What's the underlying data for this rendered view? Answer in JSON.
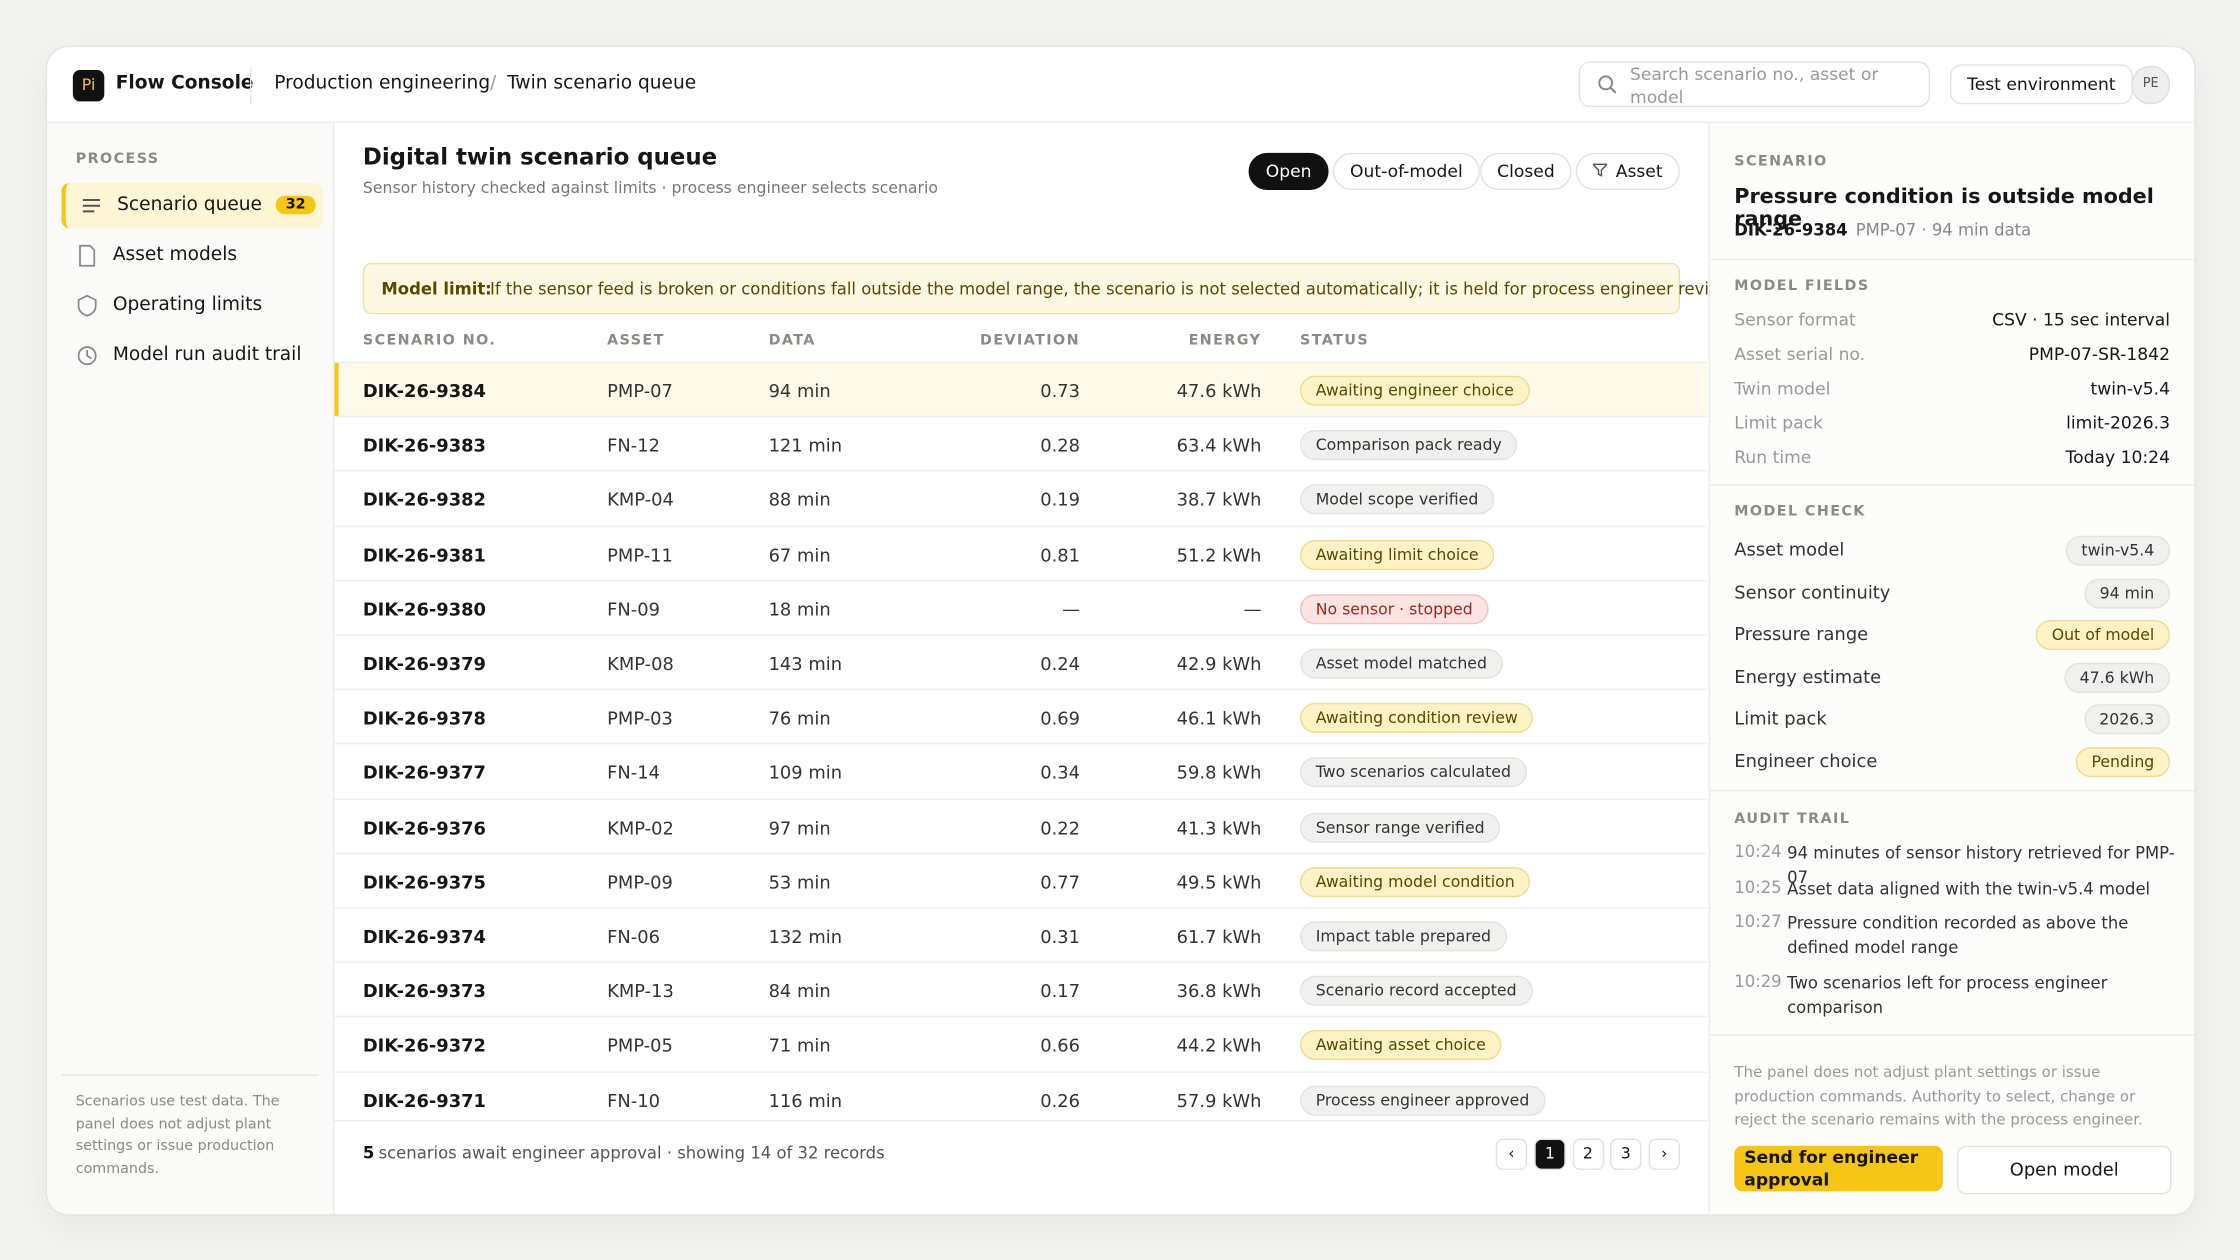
{
  "app": {
    "logo": "Pi",
    "name": "Flow Console"
  },
  "breadcrumb": {
    "items": [
      "Production engineering",
      "Twin scenario queue"
    ],
    "separator": "/"
  },
  "search": {
    "placeholder": "Search scenario no., asset or model"
  },
  "environment": "Test environment",
  "avatar": "PE",
  "sidebar": {
    "section": "PROCESS",
    "items": [
      {
        "label": "Scenario queue",
        "badge": "32",
        "active": true
      },
      {
        "label": "Asset models"
      },
      {
        "label": "Operating limits"
      },
      {
        "label": "Model run audit trail"
      }
    ],
    "note": "Scenarios use test data. The panel does not adjust plant settings or issue production commands."
  },
  "queue": {
    "title": "Digital twin scenario queue",
    "subtitle": "Sensor history checked against limits · process engineer selects scenario",
    "filters": [
      "Open",
      "Out-of-model",
      "Closed",
      "Asset"
    ],
    "active_filter": 0,
    "notice": {
      "label": "Model limit:",
      "text": "If the sensor feed is broken or conditions fall outside the model range, the scenario is not selected automatically; it is held for process engineer review."
    },
    "columns": [
      "SCENARIO NO.",
      "ASSET",
      "DATA",
      "DEVIATION",
      "ENERGY",
      "STATUS"
    ],
    "selected_row": 0,
    "rows": [
      {
        "id": "DIK-26-9384",
        "asset": "PMP-07",
        "data": "94 min",
        "deviation": "0.73",
        "energy": "47.6 kWh",
        "status": "Awaiting engineer choice",
        "tone": "warn"
      },
      {
        "id": "DIK-26-9383",
        "asset": "FN-12",
        "data": "121 min",
        "deviation": "0.28",
        "energy": "63.4 kWh",
        "status": "Comparison pack ready",
        "tone": "neutral"
      },
      {
        "id": "DIK-26-9382",
        "asset": "KMP-04",
        "data": "88 min",
        "deviation": "0.19",
        "energy": "38.7 kWh",
        "status": "Model scope verified",
        "tone": "neutral"
      },
      {
        "id": "DIK-26-9381",
        "asset": "PMP-11",
        "data": "67 min",
        "deviation": "0.81",
        "energy": "51.2 kWh",
        "status": "Awaiting limit choice",
        "tone": "warn"
      },
      {
        "id": "DIK-26-9380",
        "asset": "FN-09",
        "data": "18 min",
        "deviation": "—",
        "energy": "—",
        "status": "No sensor · stopped",
        "tone": "danger"
      },
      {
        "id": "DIK-26-9379",
        "asset": "KMP-08",
        "data": "143 min",
        "deviation": "0.24",
        "energy": "42.9 kWh",
        "status": "Asset model matched",
        "tone": "neutral"
      },
      {
        "id": "DIK-26-9378",
        "asset": "PMP-03",
        "data": "76 min",
        "deviation": "0.69",
        "energy": "46.1 kWh",
        "status": "Awaiting condition review",
        "tone": "warn"
      },
      {
        "id": "DIK-26-9377",
        "asset": "FN-14",
        "data": "109 min",
        "deviation": "0.34",
        "energy": "59.8 kWh",
        "status": "Two scenarios calculated",
        "tone": "neutral"
      },
      {
        "id": "DIK-26-9376",
        "asset": "KMP-02",
        "data": "97 min",
        "deviation": "0.22",
        "energy": "41.3 kWh",
        "status": "Sensor range verified",
        "tone": "neutral"
      },
      {
        "id": "DIK-26-9375",
        "asset": "PMP-09",
        "data": "53 min",
        "deviation": "0.77",
        "energy": "49.5 kWh",
        "status": "Awaiting model condition",
        "tone": "warn"
      },
      {
        "id": "DIK-26-9374",
        "asset": "FN-06",
        "data": "132 min",
        "deviation": "0.31",
        "energy": "61.7 kWh",
        "status": "Impact table prepared",
        "tone": "neutral"
      },
      {
        "id": "DIK-26-9373",
        "asset": "KMP-13",
        "data": "84 min",
        "deviation": "0.17",
        "energy": "36.8 kWh",
        "status": "Scenario record accepted",
        "tone": "neutral"
      },
      {
        "id": "DIK-26-9372",
        "asset": "PMP-05",
        "data": "71 min",
        "deviation": "0.66",
        "energy": "44.2 kWh",
        "status": "Awaiting asset choice",
        "tone": "warn"
      },
      {
        "id": "DIK-26-9371",
        "asset": "FN-10",
        "data": "116 min",
        "deviation": "0.26",
        "energy": "57.9 kWh",
        "status": "Process engineer approved",
        "tone": "neutral"
      }
    ],
    "footer": {
      "count": "5",
      "text": "scenarios await engineer approval · showing 14 of 32 records",
      "prev": "‹",
      "pages": [
        "1",
        "2",
        "3"
      ],
      "current_page": 0,
      "next": "›"
    }
  },
  "detail": {
    "section": "SCENARIO",
    "title": "Pressure condition is outside model range",
    "id": "DIK-26-9384",
    "meta": "PMP-07 · 94 min data",
    "fields": {
      "title": "MODEL FIELDS",
      "rows": [
        [
          "Sensor format",
          "CSV · 15 sec interval"
        ],
        [
          "Asset serial no.",
          "PMP-07-SR-1842"
        ],
        [
          "Twin model",
          "twin-v5.4"
        ],
        [
          "Limit pack",
          "limit-2026.3"
        ],
        [
          "Run time",
          "Today 10:24"
        ]
      ]
    },
    "check": {
      "title": "MODEL CHECK",
      "rows": [
        {
          "label": "Asset model",
          "value": "twin-v5.4",
          "tone": "neutral"
        },
        {
          "label": "Sensor continuity",
          "value": "94 min",
          "tone": "neutral"
        },
        {
          "label": "Pressure range",
          "value": "Out of model",
          "tone": "warn"
        },
        {
          "label": "Energy estimate",
          "value": "47.6 kWh",
          "tone": "neutral"
        },
        {
          "label": "Limit pack",
          "value": "2026.3",
          "tone": "neutral"
        },
        {
          "label": "Engineer choice",
          "value": "Pending",
          "tone": "warn"
        }
      ]
    },
    "audit": {
      "title": "AUDIT TRAIL",
      "entries": [
        {
          "time": "10:24",
          "text": "94 minutes of sensor history retrieved for PMP-07"
        },
        {
          "time": "10:25",
          "text": "Asset data aligned with the twin-v5.4 model"
        },
        {
          "time": "10:27",
          "text": "Pressure condition recorded as above the defined model range"
        },
        {
          "time": "10:29",
          "text": "Two scenarios left for process engineer comparison"
        }
      ]
    },
    "disclaimer": "The panel does not adjust plant settings or issue production commands. Authority to select, change or reject the scenario remains with the process engineer.",
    "primary": "Send for engineer approval",
    "secondary": "Open model"
  }
}
